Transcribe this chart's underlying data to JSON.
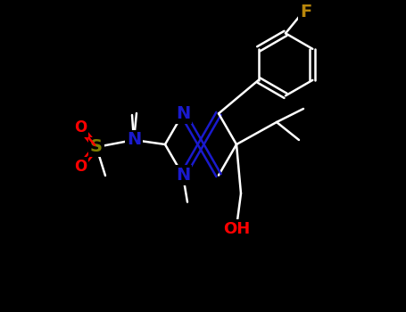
{
  "background_color": "#000000",
  "bond_color": "#ffffff",
  "bond_lw": 1.8,
  "colors": {
    "N": "#1a1acd",
    "O": "#ff0000",
    "S": "#808000",
    "F": "#b8860b",
    "C": "#ffffff",
    "OH": "#ff0000"
  },
  "font_size_atom": 14,
  "font_size_small": 11
}
